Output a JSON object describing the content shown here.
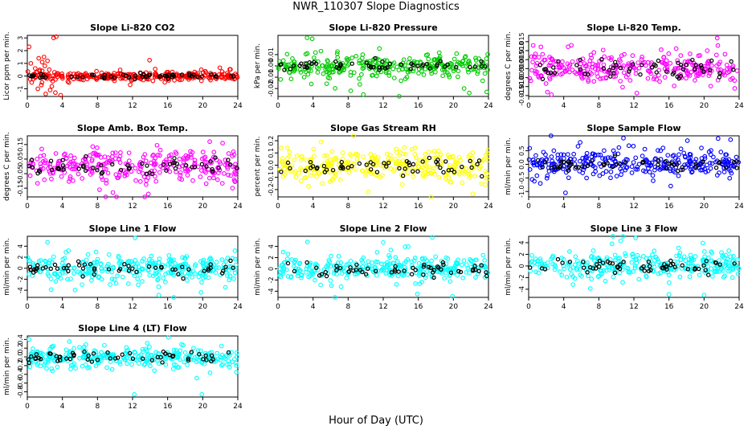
{
  "figure": {
    "title": "NWR_110307  Slope Diagnostics",
    "xlabel": "Hour of Day (UTC)"
  },
  "chart_data": [
    {
      "type": "scatter",
      "title": "Slope Li-820 CO2",
      "xlabel": "",
      "ylabel": "Licor ppm per min.",
      "xlim": [
        0,
        24
      ],
      "ylim": [
        -1.6,
        3.2
      ],
      "xticks": [
        0,
        4,
        8,
        12,
        16,
        20,
        24
      ],
      "yticks": [
        -1,
        0,
        1,
        2,
        3
      ],
      "ytick_labels": [
        "-1",
        "0",
        "1",
        "2",
        "3"
      ],
      "color": "#ff0000",
      "spread": 0.16,
      "outlier_spread": 0.45,
      "seed": 11,
      "extra_points": [
        {
          "x": 0.2,
          "y": 2.3
        },
        {
          "x": 0.4,
          "y": 1.0
        },
        {
          "x": 0.5,
          "y": -0.5
        },
        {
          "x": 0.9,
          "y": 0.6
        },
        {
          "x": 1.2,
          "y": -1.0
        },
        {
          "x": 1.3,
          "y": 1.4
        },
        {
          "x": 1.6,
          "y": -0.7
        },
        {
          "x": 1.7,
          "y": 1.1
        },
        {
          "x": 1.9,
          "y": 1.5
        },
        {
          "x": 2.1,
          "y": -1.4
        },
        {
          "x": 2.2,
          "y": -0.2
        },
        {
          "x": 2.3,
          "y": 1.2
        },
        {
          "x": 2.5,
          "y": 0.5
        },
        {
          "x": 2.6,
          "y": -1.1
        },
        {
          "x": 2.8,
          "y": -0.8
        },
        {
          "x": 2.9,
          "y": -0.4
        },
        {
          "x": 3.0,
          "y": 3.0
        },
        {
          "x": 3.1,
          "y": 0.3
        },
        {
          "x": 3.2,
          "y": -1.3
        },
        {
          "x": 3.3,
          "y": 3.1
        },
        {
          "x": 3.5,
          "y": 0.2
        },
        {
          "x": 3.8,
          "y": -1.5
        },
        {
          "x": 2.0,
          "y": 0.8
        },
        {
          "x": 1.4,
          "y": 0.4
        }
      ]
    },
    {
      "type": "scatter",
      "title": "Slope Li-820 Pressure",
      "xlabel": "",
      "ylabel": "kPa per min.",
      "xlim": [
        0,
        24
      ],
      "ylim": [
        -0.027,
        0.027
      ],
      "xticks": [
        0,
        4,
        8,
        12,
        16,
        20,
        24
      ],
      "yticks": [
        -0.02,
        -0.01,
        0,
        0.01
      ],
      "ytick_labels": [
        "-0.02",
        "-0.01",
        "0.00",
        "0.01"
      ],
      "color": "#00cc00",
      "spread": 0.0045,
      "outlier_spread": 0.012,
      "seed": 23,
      "extra_points": [
        {
          "x": 3.9,
          "y": 0.024
        },
        {
          "x": 8.3,
          "y": -0.022
        },
        {
          "x": 23.8,
          "y": -0.023
        },
        {
          "x": 3.8,
          "y": -0.016
        },
        {
          "x": 0.3,
          "y": -0.012
        }
      ]
    },
    {
      "type": "scatter",
      "title": "Slope Li-820 Temp.",
      "xlabel": "",
      "ylabel": "degrees C per min.",
      "xlim": [
        0,
        24
      ],
      "ylim": [
        -0.0155,
        0.0185
      ],
      "xticks": [
        0,
        4,
        8,
        12,
        16,
        20,
        24
      ],
      "yticks": [
        -0.015,
        -0.01,
        -0.005,
        0,
        0.005,
        0.01,
        0.015
      ],
      "ytick_labels": [
        "-0.015",
        "-0.010",
        "-0.005",
        "0.000",
        "0.005",
        "0.010",
        "0.015"
      ],
      "color": "#ff00ff",
      "spread": 0.004,
      "outlier_spread": 0.008,
      "seed": 37,
      "extra_points": [
        {
          "x": 21.5,
          "y": 0.017
        },
        {
          "x": 2.6,
          "y": -0.0145
        },
        {
          "x": 23.5,
          "y": -0.011
        }
      ]
    },
    {
      "type": "scatter",
      "title": "Slope Amb. Box Temp.",
      "xlabel": "",
      "ylabel": "degrees C per min.",
      "xlim": [
        0,
        24
      ],
      "ylim": [
        -0.21,
        0.21
      ],
      "xticks": [
        0,
        4,
        8,
        12,
        16,
        20,
        24
      ],
      "yticks": [
        -0.15,
        -0.05,
        0.05,
        0.15
      ],
      "ytick_labels": [
        "-0.15",
        "-0.05",
        "0.05",
        "0.15"
      ],
      "color": "#ff00ff",
      "spread": 0.055,
      "outlier_spread": 0.1,
      "seed": 41,
      "extra_points": [
        {
          "x": 20.8,
          "y": 0.17
        },
        {
          "x": 13.8,
          "y": -0.19
        },
        {
          "x": 23.4,
          "y": -0.15
        }
      ]
    },
    {
      "type": "scatter",
      "title": "Slope Gas Stream RH",
      "xlabel": "",
      "ylabel": "percent per min.",
      "xlim": [
        0,
        24
      ],
      "ylim": [
        -0.26,
        0.24
      ],
      "xticks": [
        0,
        4,
        8,
        12,
        16,
        20,
        24
      ],
      "yticks": [
        -0.2,
        -0.1,
        0,
        0.1,
        0.2
      ],
      "ytick_labels": [
        "-0.2",
        "-0.1",
        "0.0",
        "0.1",
        "0.2"
      ],
      "color": "#ffff00",
      "spread": 0.065,
      "outlier_spread": 0.12,
      "seed": 53,
      "extra_points": [
        {
          "x": 22.2,
          "y": -0.235
        },
        {
          "x": 4.9,
          "y": 0.19
        }
      ]
    },
    {
      "type": "scatter",
      "title": "Slope Sample Flow",
      "xlabel": "",
      "ylabel": "ml/min per min.",
      "xlim": [
        0,
        24
      ],
      "ylim": [
        -1.2,
        1.05
      ],
      "xticks": [
        0,
        4,
        8,
        12,
        16,
        20,
        24
      ],
      "yticks": [
        -1.0,
        -0.5,
        0,
        0.5
      ],
      "ytick_labels": [
        "-1.0",
        "-0.5",
        "0.0",
        "0.5"
      ],
      "color": "#0000ff",
      "spread": 0.22,
      "outlier_spread": 0.45,
      "seed": 67,
      "extra_points": [
        {
          "x": 4.2,
          "y": -1.05
        },
        {
          "x": 21.6,
          "y": 0.95
        },
        {
          "x": 16.2,
          "y": -0.8
        }
      ]
    },
    {
      "type": "scatter",
      "title": "Slope Line 1 Flow",
      "xlabel": "",
      "ylabel": "ml/min per min.",
      "xlim": [
        0,
        24
      ],
      "ylim": [
        -5.3,
        5.8
      ],
      "xticks": [
        0,
        4,
        8,
        12,
        16,
        20,
        24
      ],
      "yticks": [
        -4,
        -2,
        0,
        2,
        4
      ],
      "ytick_labels": [
        "-4",
        "-2",
        "0",
        "2",
        "4"
      ],
      "color": "#00ffff",
      "spread": 1.1,
      "outlier_spread": 2.4,
      "seed": 71,
      "extra_points": [
        {
          "x": 12.3,
          "y": 5.5
        },
        {
          "x": 2.3,
          "y": 4.7
        },
        {
          "x": 15.0,
          "y": -4.9
        },
        {
          "x": 19.8,
          "y": -4.4
        }
      ]
    },
    {
      "type": "scatter",
      "title": "Slope Line 2 Flow",
      "xlabel": "",
      "ylabel": "ml/min per min.",
      "xlim": [
        0,
        24
      ],
      "ylim": [
        -5.1,
        5.8
      ],
      "xticks": [
        0,
        4,
        8,
        12,
        16,
        20,
        24
      ],
      "yticks": [
        -4,
        -2,
        0,
        2,
        4
      ],
      "ytick_labels": [
        "-4",
        "-2",
        "0",
        "2",
        "4"
      ],
      "color": "#00ffff",
      "spread": 0.9,
      "outlier_spread": 2.0,
      "seed": 83,
      "extra_points": [
        {
          "x": 17.6,
          "y": 5.6
        },
        {
          "x": 12.0,
          "y": 4.7
        },
        {
          "x": 15.9,
          "y": -4.5
        },
        {
          "x": 19.9,
          "y": -4.9
        },
        {
          "x": 7.2,
          "y": -3.2
        }
      ]
    },
    {
      "type": "scatter",
      "title": "Slope Line 3 Flow",
      "xlabel": "",
      "ylabel": "ml/min per min.",
      "xlim": [
        0,
        24
      ],
      "ylim": [
        -5.4,
        5.1
      ],
      "xticks": [
        0,
        4,
        8,
        12,
        16,
        20,
        24
      ],
      "yticks": [
        -4,
        -2,
        0,
        2,
        4
      ],
      "ytick_labels": [
        "-4",
        "-2",
        "0",
        "2",
        "4"
      ],
      "color": "#00ffff",
      "spread": 1.1,
      "outlier_spread": 2.2,
      "seed": 97,
      "extra_points": [
        {
          "x": 12.2,
          "y": 4.8
        },
        {
          "x": 10.5,
          "y": 4.3
        },
        {
          "x": 16.0,
          "y": -4.9
        },
        {
          "x": 20.0,
          "y": -5.0
        },
        {
          "x": 9.5,
          "y": 3.8
        }
      ]
    },
    {
      "type": "scatter",
      "title": "Slope Line 4 (LT) Flow",
      "xlabel": "",
      "ylabel": "ml/min per min.",
      "xlim": [
        0,
        24
      ],
      "ylim": [
        -0.92,
        0.48
      ],
      "xticks": [
        0,
        4,
        8,
        12,
        16,
        20,
        24
      ],
      "yticks": [
        -0.8,
        -0.6,
        -0.4,
        -0.2,
        0,
        0.2,
        0.4
      ],
      "ytick_labels": [
        "-0.8",
        "-0.6",
        "-0.4",
        "-0.2",
        "0.0",
        "0.2",
        "0.4"
      ],
      "color": "#00ffff",
      "spread": 0.11,
      "outlier_spread": 0.22,
      "seed": 101,
      "extra_points": [
        {
          "x": 12.2,
          "y": -0.86
        },
        {
          "x": 19.9,
          "y": -0.86
        },
        {
          "x": 16.1,
          "y": 0.45
        },
        {
          "x": 0.2,
          "y": 0.4
        }
      ]
    }
  ]
}
